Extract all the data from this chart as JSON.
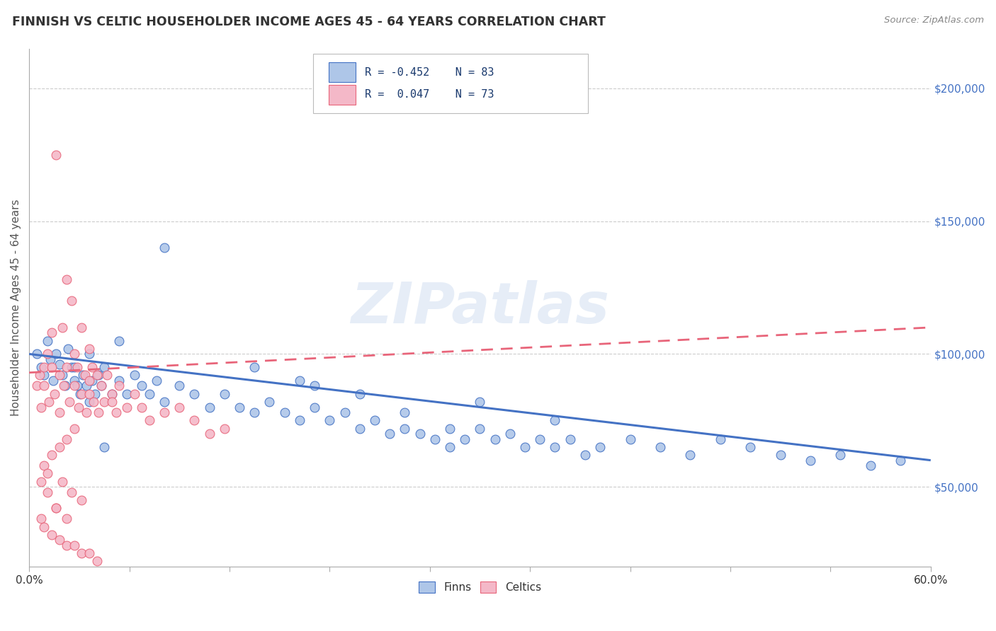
{
  "title": "FINNISH VS CELTIC HOUSEHOLDER INCOME AGES 45 - 64 YEARS CORRELATION CHART",
  "source": "Source: ZipAtlas.com",
  "ylabel": "Householder Income Ages 45 - 64 years",
  "xlim": [
    0.0,
    0.6
  ],
  "ylim": [
    20000,
    215000
  ],
  "yticks": [
    50000,
    100000,
    150000,
    200000
  ],
  "ytick_labels": [
    "$50,000",
    "$100,000",
    "$150,000",
    "$200,000"
  ],
  "xtick_positions": [
    0.0,
    0.06667,
    0.13333,
    0.2,
    0.26667,
    0.33333,
    0.4,
    0.46667,
    0.53333,
    0.6
  ],
  "xtick_labels_show": [
    "0.0%",
    "",
    "",
    "",
    "",
    "",
    "",
    "",
    "",
    "60.0%"
  ],
  "finns_color": "#aec6e8",
  "finns_edge_color": "#4472c4",
  "celtics_color": "#f4b8c8",
  "celtics_edge_color": "#e8657a",
  "finns_line_color": "#4472c4",
  "celtics_line_color": "#e8657a",
  "watermark": "ZIPatlas",
  "finns_R": -0.452,
  "finns_N": 83,
  "celtics_R": 0.047,
  "celtics_N": 73,
  "finns_x": [
    0.005,
    0.008,
    0.01,
    0.012,
    0.014,
    0.016,
    0.018,
    0.02,
    0.022,
    0.024,
    0.026,
    0.028,
    0.03,
    0.032,
    0.034,
    0.036,
    0.038,
    0.04,
    0.042,
    0.044,
    0.046,
    0.048,
    0.05,
    0.055,
    0.06,
    0.065,
    0.07,
    0.075,
    0.08,
    0.085,
    0.09,
    0.1,
    0.11,
    0.12,
    0.13,
    0.14,
    0.15,
    0.16,
    0.17,
    0.18,
    0.19,
    0.2,
    0.21,
    0.22,
    0.23,
    0.24,
    0.25,
    0.26,
    0.27,
    0.28,
    0.29,
    0.3,
    0.31,
    0.32,
    0.33,
    0.34,
    0.35,
    0.36,
    0.37,
    0.38,
    0.4,
    0.42,
    0.44,
    0.46,
    0.48,
    0.5,
    0.52,
    0.54,
    0.56,
    0.58,
    0.22,
    0.18,
    0.25,
    0.3,
    0.35,
    0.19,
    0.28,
    0.15,
    0.09,
    0.06,
    0.05,
    0.04,
    0.03
  ],
  "finns_y": [
    100000,
    95000,
    92000,
    105000,
    98000,
    90000,
    100000,
    96000,
    92000,
    88000,
    102000,
    95000,
    90000,
    88000,
    85000,
    92000,
    88000,
    100000,
    90000,
    85000,
    92000,
    88000,
    95000,
    85000,
    90000,
    85000,
    92000,
    88000,
    85000,
    90000,
    82000,
    88000,
    85000,
    80000,
    85000,
    80000,
    78000,
    82000,
    78000,
    75000,
    80000,
    75000,
    78000,
    72000,
    75000,
    70000,
    72000,
    70000,
    68000,
    65000,
    68000,
    72000,
    68000,
    70000,
    65000,
    68000,
    65000,
    68000,
    62000,
    65000,
    68000,
    65000,
    62000,
    68000,
    65000,
    62000,
    60000,
    62000,
    58000,
    60000,
    85000,
    90000,
    78000,
    82000,
    75000,
    88000,
    72000,
    95000,
    140000,
    105000,
    65000,
    82000,
    95000
  ],
  "celtics_x": [
    0.005,
    0.007,
    0.008,
    0.01,
    0.01,
    0.012,
    0.013,
    0.015,
    0.015,
    0.017,
    0.018,
    0.02,
    0.02,
    0.022,
    0.023,
    0.025,
    0.025,
    0.027,
    0.028,
    0.03,
    0.03,
    0.032,
    0.033,
    0.035,
    0.035,
    0.037,
    0.038,
    0.04,
    0.04,
    0.042,
    0.043,
    0.045,
    0.046,
    0.048,
    0.05,
    0.052,
    0.055,
    0.058,
    0.06,
    0.065,
    0.07,
    0.075,
    0.08,
    0.09,
    0.1,
    0.11,
    0.12,
    0.13,
    0.055,
    0.04,
    0.03,
    0.025,
    0.02,
    0.015,
    0.01,
    0.012,
    0.022,
    0.028,
    0.035,
    0.018,
    0.008,
    0.01,
    0.015,
    0.02,
    0.025,
    0.03,
    0.035,
    0.04,
    0.045,
    0.008,
    0.012,
    0.018,
    0.025
  ],
  "celtics_y": [
    88000,
    92000,
    80000,
    95000,
    88000,
    100000,
    82000,
    108000,
    95000,
    85000,
    175000,
    92000,
    78000,
    110000,
    88000,
    128000,
    95000,
    82000,
    120000,
    100000,
    88000,
    95000,
    80000,
    110000,
    85000,
    92000,
    78000,
    102000,
    85000,
    95000,
    82000,
    92000,
    78000,
    88000,
    82000,
    92000,
    85000,
    78000,
    88000,
    80000,
    85000,
    80000,
    75000,
    78000,
    80000,
    75000,
    70000,
    72000,
    82000,
    90000,
    72000,
    68000,
    65000,
    62000,
    58000,
    55000,
    52000,
    48000,
    45000,
    42000,
    38000,
    35000,
    32000,
    30000,
    28000,
    28000,
    25000,
    25000,
    22000,
    52000,
    48000,
    42000,
    38000
  ]
}
